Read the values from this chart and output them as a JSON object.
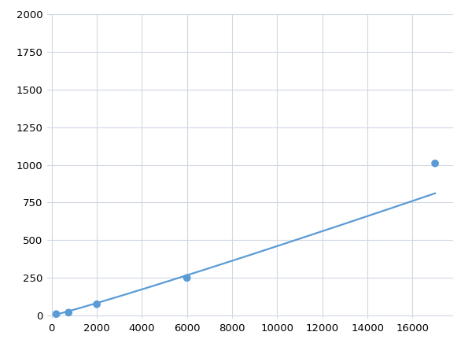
{
  "x_points": [
    200,
    750,
    2000,
    6000,
    17000
  ],
  "y_points": [
    10,
    20,
    75,
    250,
    1010
  ],
  "line_color": "#5b9bd5",
  "marker_color": "#5b9bd5",
  "marker_size": 7,
  "line_width": 1.6,
  "xlim": [
    -200,
    17800
  ],
  "ylim": [
    -20,
    2000
  ],
  "xticks": [
    0,
    2000,
    4000,
    6000,
    8000,
    10000,
    12000,
    14000,
    16000
  ],
  "yticks": [
    0,
    250,
    500,
    750,
    1000,
    1250,
    1500,
    1750,
    2000
  ],
  "grid_color": "#d0d8e4",
  "background_color": "#ffffff",
  "tick_fontsize": 9.5
}
